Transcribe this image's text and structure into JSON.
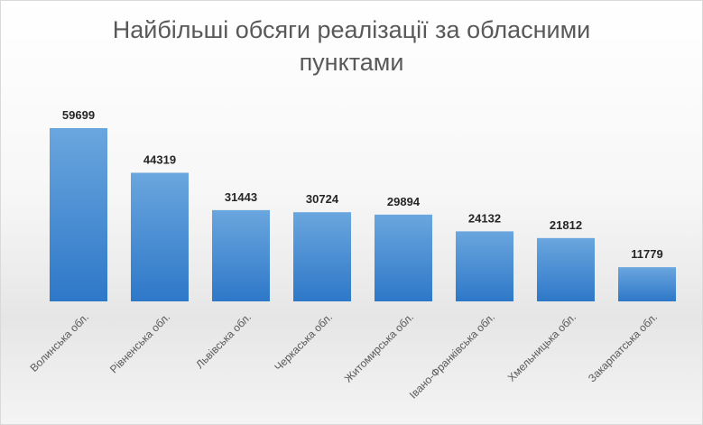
{
  "chart_data": {
    "type": "bar",
    "title_lines": [
      "Найбільші обсяги реалізації за обласними",
      "пунктами"
    ],
    "categories": [
      "Волинська обл.",
      "Рівненська обл.",
      "Львівська обл.",
      "Черкаська обл.",
      "Житомирська обл.",
      "Івано-Франківська обл.",
      "Хмельницька обл.",
      "Закарпатська обл."
    ],
    "values": [
      59699,
      44319,
      31443,
      30724,
      29894,
      24132,
      21812,
      11779
    ],
    "ylim": [
      0,
      60000
    ],
    "grid": false,
    "legend": "none",
    "bar_color_top": "#6aa6de",
    "bar_color_bottom": "#2e78c8"
  }
}
